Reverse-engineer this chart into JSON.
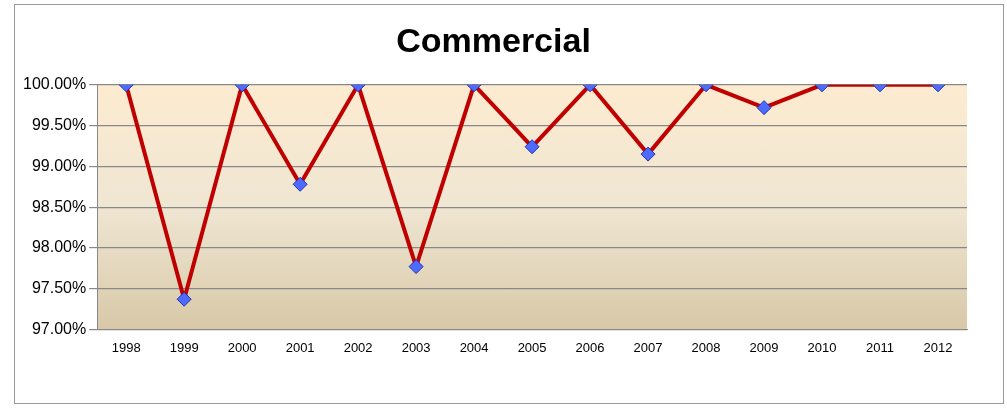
{
  "chart_data": {
    "type": "line",
    "title": "Commercial",
    "categories": [
      "1998",
      "1999",
      "2000",
      "2001",
      "2002",
      "2003",
      "2004",
      "2005",
      "2006",
      "2007",
      "2008",
      "2009",
      "2010",
      "2011",
      "2012"
    ],
    "series": [
      {
        "color": "#c00000",
        "values": [
          100,
          97.37,
          100,
          98.78,
          100,
          97.77,
          100,
          99.24,
          100,
          99.15,
          100,
          99.72,
          100,
          100,
          100
        ]
      }
    ],
    "ylim": [
      97,
      100
    ],
    "yticks": [
      {
        "value": 97,
        "label": "97.00%"
      },
      {
        "value": 97.5,
        "label": "97.50%"
      },
      {
        "value": 98,
        "label": "98.00%"
      },
      {
        "value": 98.5,
        "label": "98.50%"
      },
      {
        "value": 99,
        "label": "99.00%"
      },
      {
        "value": 99.5,
        "label": "99.50%"
      },
      {
        "value": 100,
        "label": "100.00%"
      }
    ],
    "grid": "y",
    "legend": false,
    "marker": "diamond",
    "line_style": "solid"
  }
}
